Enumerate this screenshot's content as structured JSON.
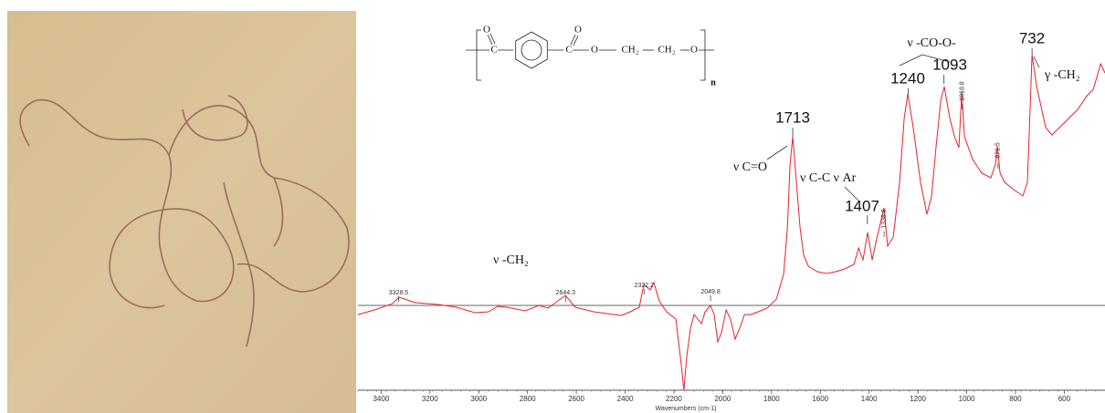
{
  "chart_data": {
    "type": "line",
    "xlabel": "Wavenumbers (cm-1)",
    "xlim": [
      3495,
      433
    ],
    "ylim": [
      0,
      418
    ],
    "xticks": [
      3400,
      3200,
      3000,
      2800,
      2600,
      2400,
      2200,
      2000,
      1800,
      1600,
      1400,
      1200,
      1000,
      800,
      600
    ],
    "baseline": 93,
    "series": [
      {
        "color": "#e8202a",
        "x": [
          3495,
          3428,
          3353,
          3327,
          3259,
          3166,
          3091,
          3016,
          2960,
          2922,
          2885,
          2810,
          2754,
          2716,
          2645,
          2604,
          2529,
          2417,
          2379,
          2342,
          2323,
          2297,
          2282,
          2260,
          2230,
          2192,
          2170,
          2159,
          2147,
          2132,
          2117,
          2087,
          2072,
          2050,
          2035,
          2020,
          2005,
          1986,
          1968,
          1949,
          1930,
          1911,
          1885,
          1855,
          1818,
          1780,
          1750,
          1735,
          1724,
          1713,
          1698,
          1683,
          1668,
          1649,
          1612,
          1574,
          1537,
          1500,
          1462,
          1443,
          1425,
          1406,
          1387,
          1369,
          1339,
          1324,
          1301,
          1275,
          1256,
          1241,
          1219,
          1189,
          1163,
          1144,
          1125,
          1106,
          1092,
          1069,
          1050,
          1032,
          1020,
          1009,
          975,
          938,
          901,
          882,
          874,
          863,
          844,
          807,
          770,
          751,
          740,
          732,
          713,
          676,
          650,
          601,
          545,
          507,
          481,
          451,
          433
        ],
        "values": [
          83,
          88,
          95,
          102,
          96,
          94,
          91,
          85,
          86,
          92,
          91,
          87,
          93,
          90,
          104,
          91,
          86,
          82,
          86,
          91,
          116,
          110,
          118,
          98,
          86,
          78,
          28,
          0,
          38,
          68,
          83,
          73,
          86,
          93,
          83,
          53,
          63,
          88,
          78,
          56,
          68,
          83,
          83,
          86,
          90,
          100,
          128,
          178,
          248,
          278,
          228,
          178,
          148,
          136,
          130,
          128,
          130,
          133,
          138,
          156,
          143,
          173,
          143,
          166,
          200,
          158,
          168,
          228,
          298,
          325,
          288,
          228,
          193,
          213,
          268,
          318,
          333,
          298,
          278,
          266,
          328,
          278,
          253,
          238,
          233,
          248,
          268,
          238,
          228,
          220,
          213,
          228,
          308,
          368,
          333,
          288,
          280,
          293,
          308,
          323,
          330,
          358,
          348
        ]
      }
    ],
    "small_peaks": [
      3328.5,
      2644.3,
      2322.2,
      2049.8,
      1338.6,
      1018.8,
      871.5
    ],
    "big_peaks": [
      1713,
      1240,
      1093,
      1407,
      732
    ],
    "group_labels": [
      "ν -CH₂",
      "ν C=O",
      "ν C-C ν Ar",
      "ν -CO-O-",
      "γ -CH₂"
    ],
    "structure": [
      "O",
      "C",
      "O",
      "C",
      "O",
      "CH₂",
      "CH₂",
      "O",
      "n"
    ]
  }
}
